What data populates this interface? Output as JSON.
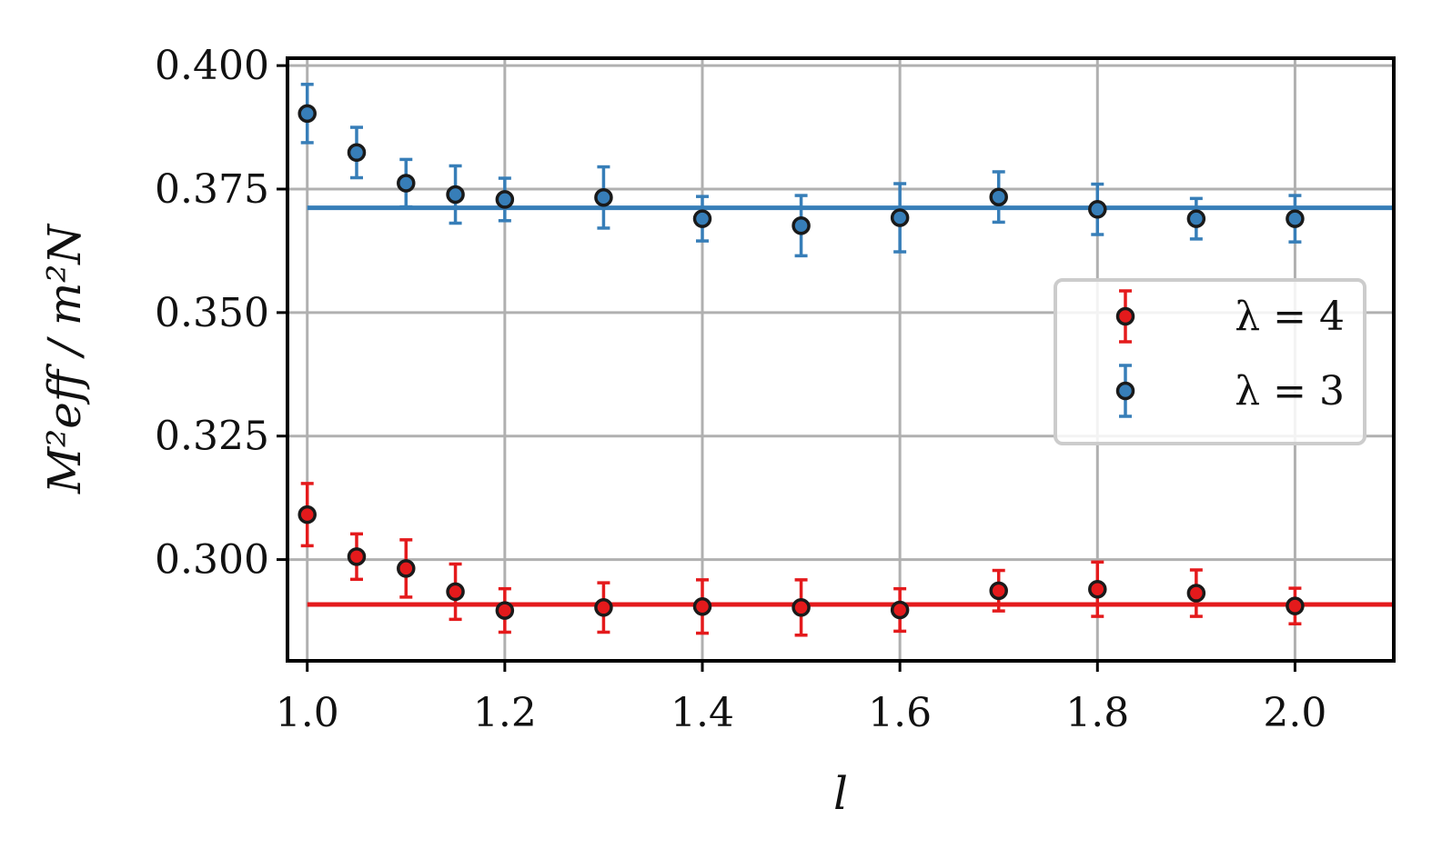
{
  "chart_data": {
    "type": "scatter",
    "title": "",
    "xlabel": "l",
    "ylabel": "M²eff / m²N",
    "xlim": [
      0.98,
      2.1
    ],
    "ylim": [
      0.2795,
      0.4015
    ],
    "xticks": [
      1.0,
      1.2,
      1.4,
      1.6,
      1.8,
      2.0
    ],
    "xtick_labels": [
      "1.0",
      "1.2",
      "1.4",
      "1.6",
      "1.8",
      "2.0"
    ],
    "yticks": [
      0.3,
      0.325,
      0.35,
      0.375,
      0.4
    ],
    "ytick_labels": [
      "0.300",
      "0.325",
      "0.350",
      "0.375",
      "0.400"
    ],
    "grid": true,
    "legend_position": "center-right",
    "series": [
      {
        "name": "λ = 4",
        "legend_label": "λ = 4",
        "color": "#e41a1c",
        "x": [
          1.0,
          1.05,
          1.1,
          1.15,
          1.2,
          1.3,
          1.4,
          1.5,
          1.6,
          1.7,
          1.8,
          1.9,
          2.0
        ],
        "y": [
          0.3091,
          0.3006,
          0.2982,
          0.2935,
          0.2897,
          0.2903,
          0.2905,
          0.2903,
          0.2898,
          0.2937,
          0.294,
          0.2932,
          0.2906
        ],
        "yerr": [
          0.0063,
          0.0046,
          0.0058,
          0.0056,
          0.0044,
          0.005,
          0.0054,
          0.0056,
          0.0043,
          0.0041,
          0.0055,
          0.0047,
          0.0036
        ],
        "fit_value": 0.2909
      },
      {
        "name": "λ = 3",
        "legend_label": "λ = 3",
        "color": "#377eb8",
        "x": [
          1.0,
          1.05,
          1.1,
          1.15,
          1.2,
          1.3,
          1.4,
          1.5,
          1.6,
          1.7,
          1.8,
          1.9,
          2.0
        ],
        "y": [
          0.3903,
          0.3824,
          0.3762,
          0.3739,
          0.3729,
          0.3733,
          0.369,
          0.3676,
          0.3692,
          0.3734,
          0.3709,
          0.369,
          0.369
        ],
        "yerr": [
          0.0059,
          0.0051,
          0.0048,
          0.0058,
          0.0043,
          0.0062,
          0.0045,
          0.0061,
          0.0069,
          0.0051,
          0.0051,
          0.0041,
          0.0047
        ],
        "fit_value": 0.3712
      }
    ]
  }
}
